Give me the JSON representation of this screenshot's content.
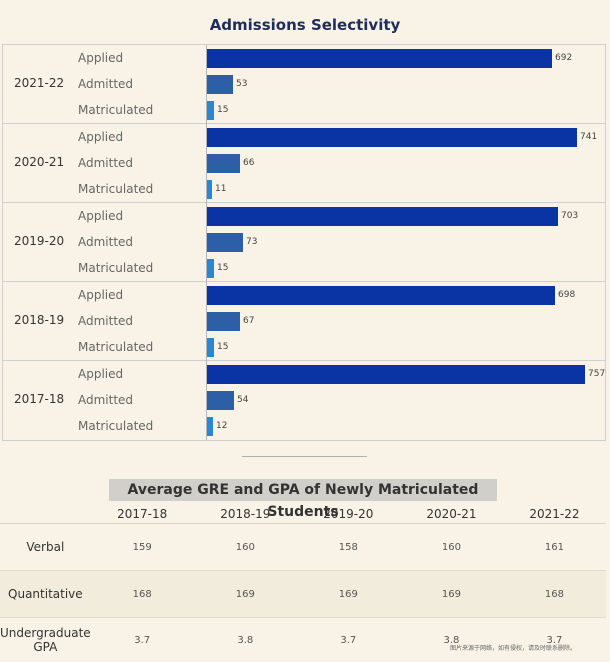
{
  "chart_data": [
    {
      "type": "bar",
      "orientation": "horizontal",
      "title": "Admissions Selectivity",
      "groups": [
        "2021-22",
        "2020-21",
        "2019-20",
        "2018-19",
        "2017-18"
      ],
      "categories": [
        "Applied",
        "Admitted",
        "Matriculated"
      ],
      "values": [
        [
          692,
          53,
          15
        ],
        [
          741,
          66,
          11
        ],
        [
          703,
          73,
          15
        ],
        [
          698,
          67,
          15
        ],
        [
          757,
          54,
          12
        ]
      ],
      "xlim": [
        0,
        800
      ],
      "grid": false,
      "colors": {
        "Applied": "#0a33a3",
        "Admitted": "#2d5fa6",
        "Matriculated": "#2a87d3"
      }
    },
    {
      "type": "table",
      "title": "Average GRE and GPA of Newly Matriculated Students",
      "columns": [
        "2017-18",
        "2018-19",
        "2019-20",
        "2020-21",
        "2021-22"
      ],
      "rows": [
        {
          "label": "Verbal",
          "values": [
            "159",
            "160",
            "158",
            "160",
            "161"
          ]
        },
        {
          "label": "Quantitative",
          "values": [
            "168",
            "169",
            "169",
            "169",
            "168"
          ]
        },
        {
          "label": "Undergraduate GPA",
          "values": [
            "3.7",
            "3.8",
            "3.7",
            "3.8",
            "3.7"
          ]
        }
      ]
    }
  ],
  "watermark": "图片来源于网络，如有侵权，请及时联系删除。"
}
